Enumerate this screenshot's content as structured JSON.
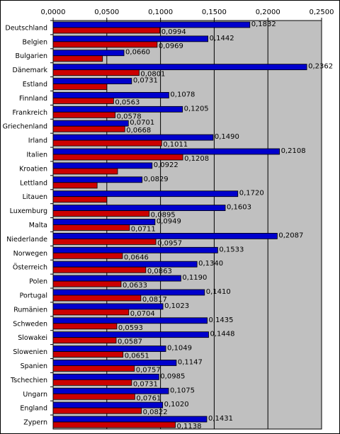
{
  "chart_data": {
    "type": "bar",
    "orientation": "horizontal",
    "xlim": [
      0,
      0.25
    ],
    "x_ticks": [
      "0,0000",
      "0,0500",
      "0,1000",
      "0,1500",
      "0,2000",
      "0,2500"
    ],
    "x_tick_values": [
      0,
      0.05,
      0.1,
      0.15,
      0.2,
      0.25
    ],
    "grid": true,
    "plot_background": "#c0c0c0",
    "categories": [
      "Deutschland",
      "Belgien",
      "Bulgarien",
      "Dänemark",
      "Estland",
      "Finnland",
      "Frankreich",
      "Griechenland",
      "Irland",
      "Italien",
      "Kroatien",
      "Lettland",
      "Litauen",
      "Luxemburg",
      "Malta",
      "Niederlande",
      "Norwegen",
      "Österreich",
      "Polen",
      "Portugal",
      "Rumänien",
      "Schweden",
      "Slowakei",
      "Slowenien",
      "Spanien",
      "Tschechien",
      "Ungarn",
      "England",
      "Zypern"
    ],
    "series": [
      {
        "color": "#0000cc",
        "values": [
          0.1832,
          0.1442,
          0.066,
          0.2362,
          0.0731,
          0.1078,
          0.1205,
          0.0701,
          0.149,
          0.2108,
          0.0922,
          0.0829,
          0.172,
          0.1603,
          0.0949,
          0.2087,
          0.1533,
          0.134,
          0.119,
          0.141,
          0.1023,
          0.1435,
          0.1448,
          0.1049,
          0.1147,
          0.0985,
          0.1075,
          0.102,
          0.1431
        ],
        "labels": [
          "0,1832",
          "0,1442",
          "0,0660",
          "0,2362",
          "0,0731",
          "0,1078",
          "0,1205",
          "0,0701",
          "0,1490",
          "0,2108",
          "0,0922",
          "0,0829",
          "0,1720",
          "0,1603",
          "0,0949",
          "0,2087",
          "0,1533",
          "0,1340",
          "0,1190",
          "0,1410",
          "0,1023",
          "0,1435",
          "0,1448",
          "0,1049",
          "0,1147",
          "0,0985",
          "0,1075",
          "0,1020",
          "0,1431"
        ]
      },
      {
        "color": "#cc0000",
        "values": [
          0.0994,
          0.0969,
          0.046,
          0.0801,
          0.05,
          0.0563,
          0.0578,
          0.0668,
          0.1011,
          0.1208,
          0.06,
          0.041,
          0.05,
          0.0895,
          0.0711,
          0.0957,
          0.0646,
          0.0863,
          0.0633,
          0.0817,
          0.0704,
          0.0593,
          0.0587,
          0.0651,
          0.0757,
          0.0731,
          0.0761,
          0.0822,
          0.1138
        ],
        "labels": [
          "0,0994",
          "0,0969",
          "",
          "0,0801",
          "",
          "0,0563",
          "0,0578",
          "0,0668",
          "0,1011",
          "0,1208",
          "",
          "",
          "",
          "0,0895",
          "0,0711",
          "0,0957",
          "0,0646",
          "0,0863",
          "0,0633",
          "0,0817",
          "0,0704",
          "0,0593",
          "0,0587",
          "0,0651",
          "0,0757",
          "0,0731",
          "0,0761",
          "0,0822",
          "0,1138"
        ]
      }
    ]
  }
}
